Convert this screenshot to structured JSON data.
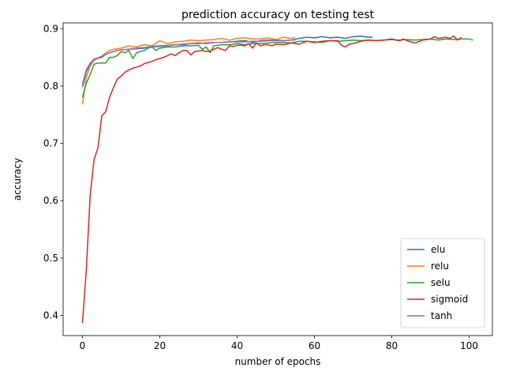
{
  "chart_data": {
    "type": "line",
    "title": "prediction accuracy on testing test",
    "xlabel": "number of epochs",
    "ylabel": "accuracy",
    "xlim": [
      -5,
      106
    ],
    "ylim": [
      0.365,
      0.91
    ],
    "xticks": [
      0,
      20,
      40,
      60,
      80,
      100
    ],
    "yticks": [
      0.4,
      0.5,
      0.6,
      0.7,
      0.8,
      0.9
    ],
    "legend_position": "lower-right",
    "grid": false,
    "series": [
      {
        "name": "elu",
        "color": "#1f77b4",
        "x": [
          0,
          1,
          2,
          3,
          4,
          5,
          6,
          7,
          8,
          9,
          10,
          12,
          14,
          16,
          18,
          20,
          22,
          24,
          26,
          28,
          30,
          32,
          34,
          36,
          38,
          40,
          42,
          44,
          46,
          48,
          50,
          52,
          54,
          56,
          58,
          60,
          62,
          64,
          66,
          68,
          70,
          72,
          74,
          75
        ],
        "y": [
          0.798,
          0.825,
          0.838,
          0.845,
          0.848,
          0.85,
          0.855,
          0.858,
          0.86,
          0.862,
          0.863,
          0.864,
          0.865,
          0.866,
          0.868,
          0.869,
          0.87,
          0.872,
          0.872,
          0.874,
          0.875,
          0.874,
          0.876,
          0.876,
          0.877,
          0.878,
          0.879,
          0.876,
          0.879,
          0.88,
          0.88,
          0.879,
          0.88,
          0.883,
          0.885,
          0.884,
          0.886,
          0.884,
          0.885,
          0.883,
          0.886,
          0.887,
          0.885,
          0.885
        ]
      },
      {
        "name": "relu",
        "color": "#ff7f0e",
        "x": [
          0,
          1,
          2,
          3,
          4,
          5,
          6,
          7,
          8,
          10,
          12,
          14,
          16,
          18,
          20,
          22,
          24,
          26,
          28,
          30,
          32,
          34,
          36,
          38,
          40,
          42,
          44,
          46,
          48,
          50,
          52,
          54,
          55
        ],
        "y": [
          0.768,
          0.815,
          0.835,
          0.845,
          0.848,
          0.852,
          0.858,
          0.862,
          0.864,
          0.866,
          0.87,
          0.868,
          0.872,
          0.87,
          0.879,
          0.874,
          0.877,
          0.878,
          0.88,
          0.879,
          0.88,
          0.881,
          0.883,
          0.88,
          0.883,
          0.884,
          0.882,
          0.882,
          0.884,
          0.881,
          0.885,
          0.883,
          0.885
        ]
      },
      {
        "name": "selu",
        "color": "#2ca02c",
        "x": [
          0,
          1,
          2,
          3,
          4,
          5,
          6,
          7,
          8,
          9,
          10,
          11,
          12,
          13,
          14,
          15,
          16,
          17,
          18,
          19,
          20,
          22,
          24,
          26,
          28,
          30,
          31,
          32,
          33,
          34,
          36,
          38,
          40,
          42,
          44,
          46,
          48,
          50,
          52,
          54,
          56,
          58,
          60,
          62,
          64,
          66,
          68,
          70,
          72,
          74,
          76,
          78,
          80,
          82,
          84,
          86,
          88,
          90,
          92,
          94,
          96,
          98,
          100,
          101
        ],
        "y": [
          0.78,
          0.805,
          0.82,
          0.838,
          0.84,
          0.84,
          0.84,
          0.85,
          0.85,
          0.853,
          0.86,
          0.858,
          0.862,
          0.848,
          0.858,
          0.86,
          0.862,
          0.866,
          0.868,
          0.862,
          0.866,
          0.868,
          0.868,
          0.87,
          0.87,
          0.871,
          0.864,
          0.868,
          0.858,
          0.87,
          0.872,
          0.872,
          0.874,
          0.872,
          0.874,
          0.874,
          0.875,
          0.876,
          0.876,
          0.875,
          0.878,
          0.878,
          0.877,
          0.876,
          0.879,
          0.878,
          0.879,
          0.88,
          0.879,
          0.88,
          0.879,
          0.88,
          0.881,
          0.88,
          0.881,
          0.88,
          0.881,
          0.882,
          0.88,
          0.882,
          0.881,
          0.882,
          0.882,
          0.88
        ]
      },
      {
        "name": "sigmoid",
        "color": "#d62728",
        "x": [
          0,
          1,
          2,
          3,
          4,
          5,
          6,
          7,
          8,
          9,
          10,
          11,
          12,
          13,
          14,
          15,
          16,
          17,
          18,
          19,
          20,
          21,
          22,
          23,
          24,
          25,
          26,
          27,
          28,
          29,
          30,
          31,
          32,
          33,
          34,
          35,
          36,
          37,
          38,
          39,
          40,
          41,
          42,
          43,
          44,
          45,
          46,
          47,
          48,
          49,
          50,
          52,
          54,
          56,
          58,
          60,
          62,
          64,
          66,
          67,
          68,
          69,
          70,
          72,
          74,
          76,
          78,
          80,
          81,
          82,
          83,
          84,
          85,
          86,
          88,
          90,
          91,
          92,
          94,
          95,
          96,
          97,
          98
        ],
        "y": [
          0.387,
          0.48,
          0.61,
          0.672,
          0.692,
          0.748,
          0.755,
          0.78,
          0.797,
          0.812,
          0.817,
          0.824,
          0.828,
          0.831,
          0.833,
          0.835,
          0.839,
          0.841,
          0.843,
          0.846,
          0.848,
          0.85,
          0.853,
          0.856,
          0.853,
          0.858,
          0.862,
          0.862,
          0.854,
          0.86,
          0.861,
          0.862,
          0.86,
          0.861,
          0.864,
          0.867,
          0.864,
          0.862,
          0.87,
          0.869,
          0.871,
          0.871,
          0.87,
          0.874,
          0.866,
          0.875,
          0.87,
          0.872,
          0.872,
          0.87,
          0.873,
          0.872,
          0.875,
          0.873,
          0.878,
          0.876,
          0.878,
          0.879,
          0.879,
          0.871,
          0.868,
          0.873,
          0.874,
          0.878,
          0.88,
          0.879,
          0.88,
          0.882,
          0.88,
          0.879,
          0.882,
          0.879,
          0.877,
          0.875,
          0.88,
          0.882,
          0.886,
          0.883,
          0.885,
          0.883,
          0.887,
          0.88,
          0.885
        ]
      },
      {
        "name": "tanh",
        "color": "#9467bd",
        "x": [
          0,
          1,
          2,
          3,
          4,
          5,
          6,
          7,
          8,
          9,
          10,
          12,
          14,
          16,
          18,
          20,
          22,
          24,
          26,
          28,
          30,
          32,
          34,
          36,
          38,
          40,
          42,
          44,
          46,
          48,
          50,
          52,
          54,
          55
        ],
        "y": [
          0.803,
          0.828,
          0.84,
          0.847,
          0.849,
          0.852,
          0.855,
          0.858,
          0.86,
          0.862,
          0.863,
          0.864,
          0.866,
          0.867,
          0.869,
          0.87,
          0.871,
          0.872,
          0.873,
          0.874,
          0.874,
          0.875,
          0.876,
          0.876,
          0.877,
          0.877,
          0.877,
          0.878,
          0.878,
          0.879,
          0.879,
          0.879,
          0.88,
          0.88
        ]
      }
    ]
  }
}
